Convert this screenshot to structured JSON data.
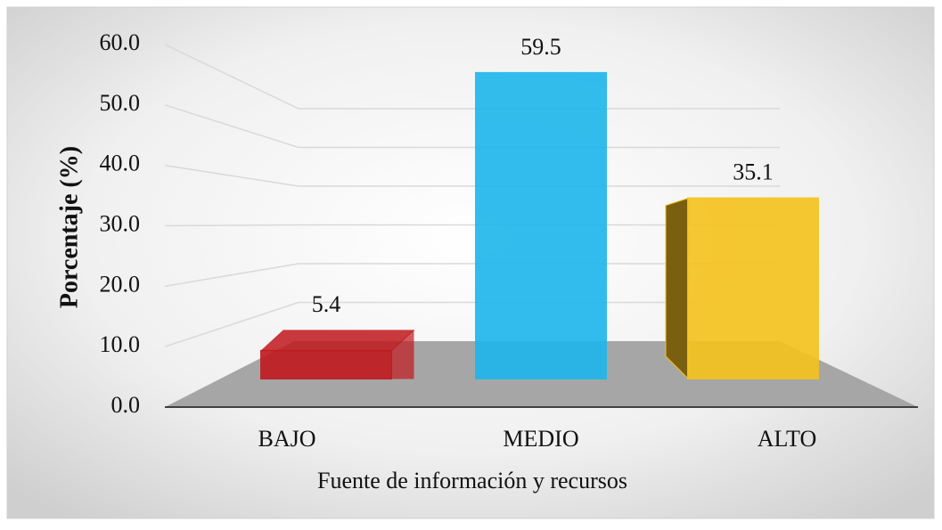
{
  "chart_data": {
    "type": "bar",
    "categories": [
      "BAJO",
      "MEDIO",
      "ALTO"
    ],
    "values": [
      5.4,
      59.5,
      35.1
    ],
    "colors": [
      "#c0191e",
      "#1cb6ec",
      "#f5c21b"
    ],
    "x_label": "Fuente de información y recursos",
    "y_label": "Porcentaje (%)",
    "ylim": [
      0,
      60
    ],
    "yticks": [
      {
        "value": 0,
        "label": "0.0"
      },
      {
        "value": 10,
        "label": "10.0"
      },
      {
        "value": 20,
        "label": "20.0"
      },
      {
        "value": 30,
        "label": "30.0"
      },
      {
        "value": 40,
        "label": "40.0"
      },
      {
        "value": 50,
        "label": "50.0"
      },
      {
        "value": 60,
        "label": "60.0"
      }
    ],
    "grid": true
  }
}
